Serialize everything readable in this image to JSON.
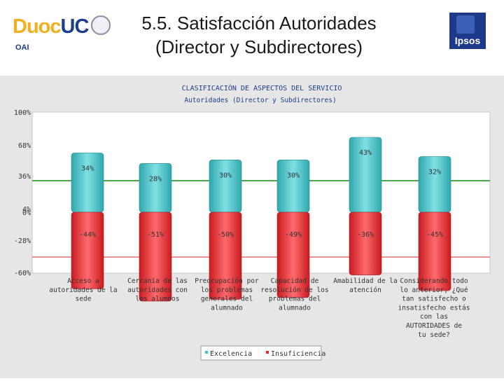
{
  "header": {
    "title_line1": "5.5. Satisfacción Autoridades",
    "title_line2": "(Director y Subdirectores)",
    "logo_left_a": "Duoc",
    "logo_left_b": "UC",
    "logo_left_sub": "OAI",
    "logo_right": "Ipsos"
  },
  "colors": {
    "excelencia": "#3cc6cc",
    "insuficiencia": "#e8262b",
    "green_line": "#4aa84a",
    "red_line": "#e07070",
    "title_blue": "#1b3f8e"
  },
  "chart_data": {
    "type": "bar",
    "title": "CLASIFICACIÓN DE ASPECTOS DEL SERVICIO",
    "subtitle": "Autoridades (Director y Subdirectores)",
    "y_ticks": [
      "100%",
      "68%",
      "36%",
      "4%",
      "0%",
      "-28%",
      "-60%"
    ],
    "ylim": [
      -60,
      100
    ],
    "categories": [
      [
        "Acceso a",
        "autoridades de la",
        "sede"
      ],
      [
        "Cercanía de las",
        "autoridades con",
        "los alumnos"
      ],
      [
        "Preocupación por",
        "los problemas",
        "generales del",
        "alumnado"
      ],
      [
        "Capacidad de",
        "resolución de los",
        "problemas del",
        "alumnado"
      ],
      [
        "Amabilidad de la",
        "atención"
      ],
      [
        "Considerando todo",
        "lo anterior, ¿Qué",
        "tan satisfecho o",
        "insatisfecho estás",
        "con las",
        "AUTORIDADES de",
        "tu sede?"
      ]
    ],
    "series": [
      {
        "name": "Excelencia",
        "values": [
          34,
          28,
          30,
          30,
          43,
          32
        ],
        "labels": [
          "34%",
          "28%",
          "30%",
          "30%",
          "43%",
          "32%"
        ]
      },
      {
        "name": "Insuficiencia",
        "values": [
          -44,
          -51,
          -50,
          -49,
          -36,
          -45
        ],
        "labels": [
          "-44%",
          "-51%",
          "-50%",
          "-49%",
          "-36%",
          "-45%"
        ]
      }
    ],
    "reference_lines": [
      36,
      -28
    ],
    "legend_position": "bottom"
  }
}
